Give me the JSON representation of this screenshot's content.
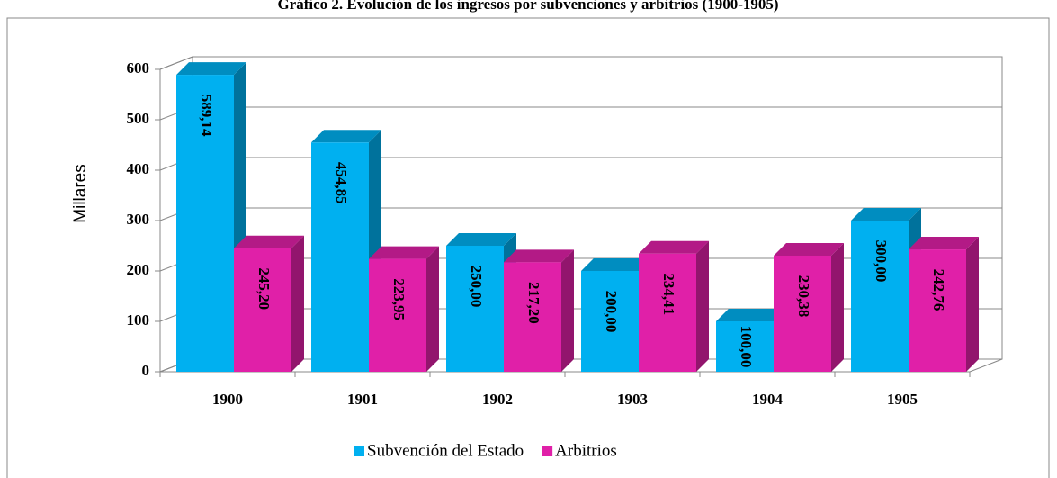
{
  "chart_data": {
    "type": "bar3d",
    "title": "Gráfico 2. Evolución de los ingresos por subvenciones y arbitrios (1900-1905)",
    "y_label": "Millares",
    "categories": [
      "1900",
      "1901",
      "1902",
      "1903",
      "1904",
      "1905"
    ],
    "series": [
      {
        "name": "Subvención del Estado",
        "color": "#00b0f0",
        "values": [
          589.14,
          454.85,
          250.0,
          200.0,
          100.0,
          300.0
        ],
        "value_labels": [
          "589,14",
          "454,85",
          "250,00",
          "200,00",
          "100,00",
          "300,00"
        ]
      },
      {
        "name": "Arbitrios",
        "color": "#e020a8",
        "values": [
          245.2,
          223.95,
          217.2,
          234.41,
          230.38,
          242.76
        ],
        "value_labels": [
          "245,20",
          "223,95",
          "217,20",
          "234,41",
          "230,38",
          "242,76"
        ]
      }
    ],
    "ylim": [
      0,
      600
    ],
    "yticks": [
      0,
      100,
      200,
      300,
      400,
      500,
      600
    ],
    "grid": true,
    "legend": "bottom"
  }
}
